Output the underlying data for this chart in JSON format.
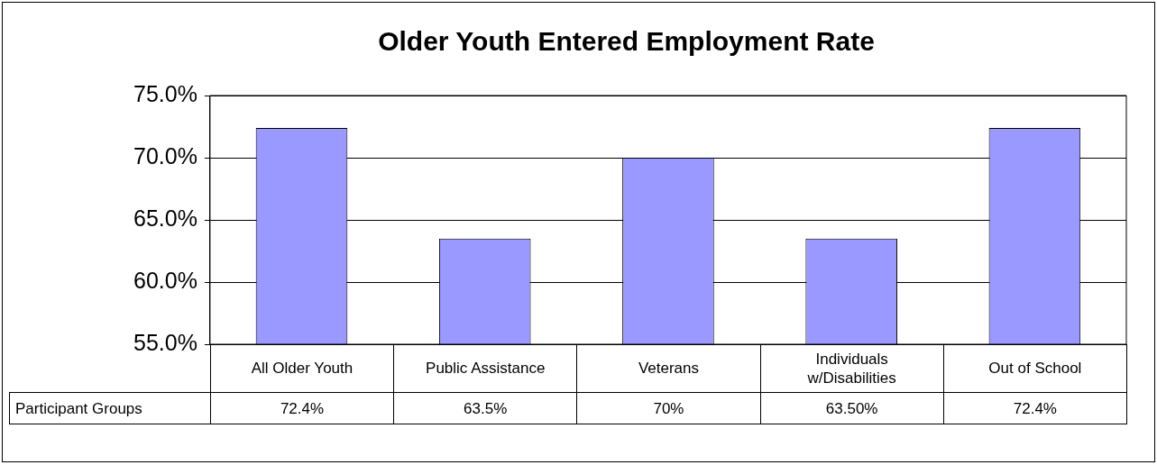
{
  "chart_data": {
    "type": "bar",
    "title": "Older Youth Entered Employment Rate",
    "categories": [
      "All Older Youth",
      "Public Assistance",
      "Veterans",
      "Individuals w/Disabilities",
      "Out of School"
    ],
    "series": [
      {
        "name": "Participant Groups",
        "color": "#9999ff",
        "values": [
          72.4,
          63.5,
          70,
          63.5,
          72.4
        ],
        "value_labels": [
          "72.4%",
          "63.5%",
          "70%",
          "63.50%",
          "72.4%"
        ]
      }
    ],
    "ylim": [
      55,
      75
    ],
    "yticks": [
      {
        "value": 55,
        "label": "55.0%"
      },
      {
        "value": 60,
        "label": "60.0%"
      },
      {
        "value": 65,
        "label": "65.0%"
      },
      {
        "value": 70,
        "label": "70.0%"
      },
      {
        "value": 75,
        "label": "75.0%"
      }
    ],
    "grid": "y",
    "legend": false
  }
}
